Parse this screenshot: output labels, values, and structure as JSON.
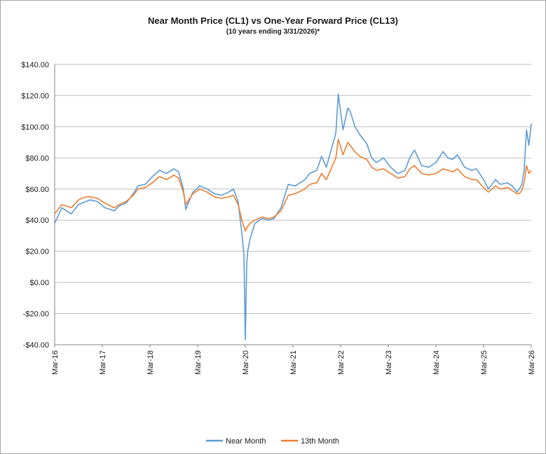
{
  "chart_data": {
    "type": "line",
    "title": "Near Month Price (CL1) vs One-Year Forward Price (CL13)",
    "subtitle": "(10 years ending  3/31/2026)*",
    "ylim": [
      -40,
      140
    ],
    "y_ticks": [
      -40,
      -20,
      0,
      20,
      40,
      60,
      80,
      100,
      120,
      140
    ],
    "y_tick_labels": [
      "-$40.00",
      "-$20.00",
      "$0.00",
      "$20.00",
      "$40.00",
      "$60.00",
      "$80.00",
      "$100.00",
      "$120.00",
      "$140.00"
    ],
    "x_tick_labels": [
      "Mar-16",
      "Mar-17",
      "Mar-18",
      "Mar-19",
      "Mar-20",
      "Mar-21",
      "Mar-22",
      "Mar-23",
      "Mar-24",
      "Mar-25",
      "Mar-26"
    ],
    "grid": "horizontal",
    "legend_position": "bottom",
    "series": [
      {
        "name": "Near Month",
        "color": "#5b9bd5",
        "x": [
          2016.25,
          2016.4,
          2016.5,
          2016.6,
          2016.75,
          2016.9,
          2017.0,
          2017.15,
          2017.3,
          2017.5,
          2017.6,
          2017.75,
          2017.9,
          2018.0,
          2018.15,
          2018.3,
          2018.45,
          2018.6,
          2018.75,
          2018.85,
          2018.95,
          2019.0,
          2019.15,
          2019.3,
          2019.45,
          2019.6,
          2019.75,
          2019.9,
          2020.0,
          2020.1,
          2020.18,
          2020.22,
          2020.25,
          2020.28,
          2020.3,
          2020.35,
          2020.45,
          2020.6,
          2020.75,
          2020.85,
          2021.0,
          2021.15,
          2021.3,
          2021.5,
          2021.6,
          2021.75,
          2021.85,
          2021.95,
          2022.05,
          2022.15,
          2022.2,
          2022.3,
          2022.4,
          2022.45,
          2022.55,
          2022.65,
          2022.8,
          2022.9,
          2023.0,
          2023.15,
          2023.3,
          2023.45,
          2023.6,
          2023.7,
          2023.8,
          2023.95,
          2024.1,
          2024.25,
          2024.4,
          2024.5,
          2024.6,
          2024.7,
          2024.85,
          2025.0,
          2025.1,
          2025.25,
          2025.35,
          2025.5,
          2025.6,
          2025.75,
          2025.85,
          2025.95,
          2026.0,
          2026.05,
          2026.1,
          2026.15,
          2026.2,
          2026.25
        ],
        "values": [
          38,
          48,
          46,
          44,
          50,
          52,
          53,
          52,
          48,
          46,
          49,
          51,
          57,
          62,
          63,
          68,
          72,
          70,
          73,
          71,
          60,
          47,
          58,
          62,
          60,
          57,
          56,
          58,
          60,
          52,
          31,
          18,
          -37,
          12,
          20,
          28,
          38,
          41,
          40,
          41,
          48,
          63,
          62,
          66,
          70,
          72,
          81,
          74,
          85,
          96,
          121,
          98,
          112,
          110,
          100,
          95,
          89,
          80,
          77,
          80,
          74,
          70,
          72,
          80,
          85,
          75,
          74,
          77,
          84,
          80,
          79,
          82,
          74,
          72,
          73,
          66,
          60,
          66,
          63,
          64,
          62,
          58,
          60,
          63,
          72,
          98,
          88,
          102
        ]
      },
      {
        "name": "13th Month",
        "color": "#ed7d31",
        "x": [
          2016.25,
          2016.4,
          2016.5,
          2016.6,
          2016.75,
          2016.9,
          2017.0,
          2017.15,
          2017.3,
          2017.5,
          2017.6,
          2017.75,
          2017.9,
          2018.0,
          2018.15,
          2018.3,
          2018.45,
          2018.6,
          2018.75,
          2018.85,
          2018.95,
          2019.0,
          2019.15,
          2019.3,
          2019.45,
          2019.6,
          2019.75,
          2019.9,
          2020.0,
          2020.1,
          2020.18,
          2020.22,
          2020.25,
          2020.28,
          2020.3,
          2020.35,
          2020.45,
          2020.6,
          2020.75,
          2020.85,
          2021.0,
          2021.15,
          2021.3,
          2021.5,
          2021.6,
          2021.75,
          2021.85,
          2021.95,
          2022.05,
          2022.15,
          2022.2,
          2022.3,
          2022.4,
          2022.45,
          2022.55,
          2022.65,
          2022.8,
          2022.9,
          2023.0,
          2023.15,
          2023.3,
          2023.45,
          2023.6,
          2023.7,
          2023.8,
          2023.95,
          2024.1,
          2024.25,
          2024.4,
          2024.5,
          2024.6,
          2024.7,
          2024.85,
          2025.0,
          2025.1,
          2025.25,
          2025.35,
          2025.5,
          2025.6,
          2025.75,
          2025.85,
          2025.95,
          2026.0,
          2026.05,
          2026.1,
          2026.15,
          2026.2,
          2026.25
        ],
        "values": [
          44,
          50,
          49,
          48,
          53,
          55,
          55,
          54,
          51,
          48,
          50,
          52,
          56,
          60,
          61,
          64,
          68,
          66,
          69,
          67,
          58,
          50,
          57,
          60,
          58,
          55,
          54,
          55,
          56,
          50,
          40,
          36,
          33,
          35,
          36,
          38,
          40,
          42,
          41,
          42,
          46,
          56,
          57,
          60,
          63,
          64,
          70,
          66,
          73,
          80,
          92,
          82,
          90,
          88,
          84,
          81,
          79,
          74,
          72,
          73,
          70,
          67,
          68,
          73,
          75,
          70,
          69,
          70,
          73,
          72,
          71,
          73,
          68,
          66,
          66,
          61,
          58,
          62,
          60,
          61,
          59,
          57,
          57,
          59,
          64,
          75,
          70,
          72
        ]
      }
    ]
  }
}
